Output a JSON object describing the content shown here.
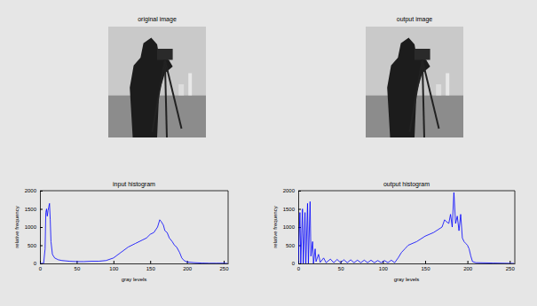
{
  "chart_data": [
    {
      "type": "image",
      "title": "original image"
    },
    {
      "type": "line",
      "title": "input histogram",
      "x_label": "gray levels",
      "y_label": "relative frequency",
      "x": [
        0,
        5,
        7,
        8,
        9,
        10,
        11,
        12,
        13,
        14,
        15,
        17,
        20,
        25,
        30,
        40,
        50,
        60,
        70,
        80,
        90,
        100,
        110,
        120,
        130,
        140,
        145,
        150,
        155,
        160,
        163,
        165,
        168,
        170,
        173,
        176,
        180,
        183,
        186,
        190,
        193,
        196,
        200,
        210,
        220,
        230,
        240,
        250,
        255
      ],
      "values": [
        0,
        0,
        400,
        1400,
        1500,
        1300,
        1450,
        1550,
        1650,
        1200,
        600,
        250,
        150,
        100,
        80,
        60,
        50,
        50,
        60,
        60,
        80,
        150,
        300,
        450,
        550,
        650,
        700,
        800,
        850,
        1000,
        1200,
        1150,
        1050,
        900,
        850,
        700,
        600,
        500,
        450,
        300,
        150,
        80,
        40,
        20,
        10,
        5,
        5,
        5,
        0
      ],
      "color": "#0000ff",
      "xlim": [
        0,
        256
      ],
      "xticks": [
        0,
        50,
        100,
        150,
        200,
        250
      ],
      "ylim": [
        0,
        2000
      ],
      "yticks": [
        0,
        500,
        1000,
        1500,
        2000
      ]
    },
    {
      "type": "image",
      "title": "output image"
    },
    {
      "type": "line",
      "title": "output histogram",
      "x_label": "gray levels",
      "y_label": "relative frequency",
      "x": [
        0,
        2,
        3,
        5,
        6,
        8,
        9,
        11,
        12,
        14,
        15,
        17,
        18,
        20,
        21,
        24,
        26,
        30,
        33,
        38,
        42,
        46,
        50,
        54,
        58,
        62,
        66,
        70,
        74,
        78,
        82,
        86,
        90,
        94,
        98,
        102,
        106,
        110,
        114,
        118,
        122,
        126,
        130,
        140,
        150,
        160,
        170,
        173,
        175,
        178,
        180,
        182,
        184,
        186,
        188,
        190,
        192,
        194,
        196,
        198,
        200,
        202,
        204,
        206,
        210,
        230,
        255
      ],
      "values": [
        0,
        1400,
        0,
        1500,
        0,
        1400,
        0,
        1650,
        0,
        1700,
        200,
        600,
        0,
        400,
        50,
        250,
        30,
        150,
        20,
        120,
        20,
        110,
        20,
        100,
        20,
        100,
        20,
        90,
        20,
        90,
        20,
        90,
        20,
        80,
        20,
        80,
        20,
        90,
        20,
        150,
        300,
        400,
        500,
        600,
        750,
        850,
        1000,
        1200,
        1150,
        1100,
        1350,
        1000,
        1950,
        1100,
        1300,
        900,
        1350,
        700,
        600,
        550,
        500,
        400,
        200,
        50,
        20,
        10,
        0
      ],
      "color": "#0000ff",
      "xlim": [
        0,
        256
      ],
      "xticks": [
        0,
        50,
        100,
        150,
        200,
        250
      ],
      "ylim": [
        0,
        2000
      ],
      "yticks": [
        0,
        500,
        1000,
        1500,
        2000
      ]
    }
  ]
}
